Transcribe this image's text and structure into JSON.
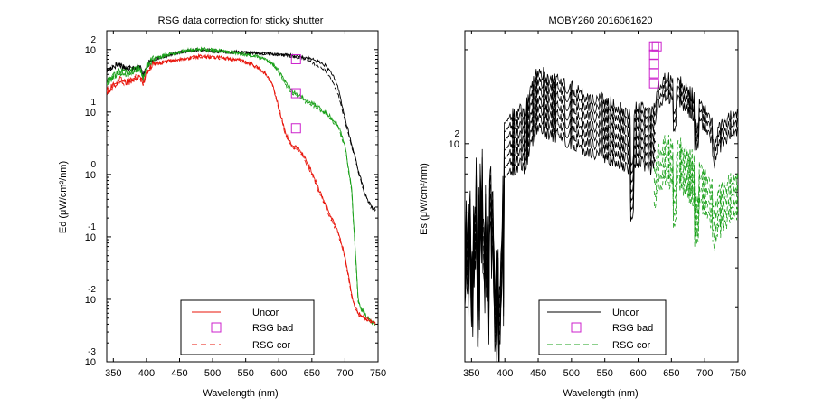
{
  "chart_data": [
    {
      "type": "line",
      "title": "RSG data correction for sticky shutter",
      "xlabel": "Wavelength (nm)",
      "ylabel": "Ed (μW/cm²/nm)",
      "yscale": "log",
      "xlim": [
        340,
        750
      ],
      "ylim": [
        0.001,
        200
      ],
      "x_ticks": [
        350,
        400,
        450,
        500,
        550,
        600,
        650,
        700,
        750
      ],
      "y_ticks": [
        {
          "base": "10",
          "exp": "-3",
          "value": 0.001
        },
        {
          "base": "10",
          "exp": "-2",
          "value": 0.01
        },
        {
          "base": "10",
          "exp": "-1",
          "value": 0.1
        },
        {
          "base": "10",
          "exp": "0",
          "value": 1
        },
        {
          "base": "10",
          "exp": "1",
          "value": 10
        },
        {
          "base": "10",
          "exp": "2",
          "value": 100
        }
      ],
      "legend": {
        "position": "bottom-center",
        "entries": [
          {
            "label": "Uncor",
            "style": "solid",
            "color": "#e8140a"
          },
          {
            "label": "RSG bad",
            "style": "square-marker",
            "color": "#cc22cc"
          },
          {
            "label": "RSG cor",
            "style": "dashed",
            "color": "#e8140a"
          }
        ]
      },
      "series": [
        {
          "color": "#000000",
          "style": "solid",
          "noise": 0.06,
          "x": [
            340,
            350,
            360,
            370,
            380,
            390,
            395,
            400,
            405,
            410,
            430,
            450,
            470,
            480,
            500,
            520,
            540,
            560,
            580,
            600,
            620,
            640,
            650,
            660,
            670,
            680,
            690,
            700,
            705,
            710,
            715,
            720,
            730,
            740,
            745
          ],
          "values": [
            45,
            55,
            58,
            50,
            52,
            55,
            38,
            55,
            62,
            68,
            80,
            90,
            98,
            100,
            95,
            92,
            90,
            88,
            86,
            84,
            80,
            74,
            70,
            64,
            56,
            42,
            24,
            8,
            5,
            3,
            2,
            1.2,
            0.5,
            0.3,
            0.28
          ]
        },
        {
          "color": "#000000",
          "style": "dashed",
          "noise": 0.05,
          "x": [
            340,
            350,
            360,
            370,
            380,
            390,
            395,
            400,
            405,
            410,
            430,
            450,
            470,
            480,
            500,
            520,
            540,
            560,
            580,
            600,
            620,
            640,
            650,
            660,
            670,
            680,
            690,
            700,
            705,
            710,
            715,
            720,
            730,
            740,
            745
          ],
          "values": [
            44,
            54,
            57,
            49,
            51,
            54,
            37,
            54,
            61,
            67,
            79,
            89,
            97,
            99,
            94,
            91,
            89,
            87,
            85,
            83,
            78,
            70,
            62,
            55,
            46,
            33,
            19,
            7,
            4.5,
            2.8,
            1.9,
            1.1,
            0.48,
            0.29,
            0.27
          ]
        },
        {
          "color": "#18a018",
          "style": "solid",
          "noise": 0.07,
          "x": [
            340,
            350,
            360,
            370,
            380,
            390,
            395,
            400,
            405,
            410,
            430,
            450,
            470,
            480,
            500,
            520,
            540,
            560,
            580,
            590,
            600,
            610,
            620,
            630,
            640,
            650,
            660,
            670,
            680,
            690,
            700,
            710,
            715,
            720,
            725,
            730,
            735,
            740,
            745
          ],
          "values": [
            30,
            38,
            45,
            42,
            46,
            52,
            35,
            55,
            63,
            70,
            82,
            92,
            100,
            102,
            98,
            94,
            88,
            80,
            70,
            60,
            45,
            30,
            22,
            19,
            16,
            14,
            12,
            10,
            8,
            6,
            3,
            0.6,
            0.08,
            0.01,
            0.007,
            0.006,
            0.005,
            0.0045,
            0.004
          ]
        },
        {
          "color": "#18a018",
          "style": "dashed",
          "noise": 0.06,
          "x": [
            340,
            350,
            360,
            370,
            380,
            390,
            395,
            400,
            405,
            410,
            430,
            450,
            470,
            480,
            500,
            520,
            540,
            560,
            580,
            590,
            600,
            610,
            620,
            630,
            640,
            650,
            660,
            670,
            680,
            690,
            700,
            710,
            715,
            720,
            725,
            730,
            735,
            740,
            745
          ],
          "values": [
            29,
            37,
            44,
            41,
            45,
            51,
            34,
            54,
            62,
            69,
            81,
            91,
            99,
            101,
            97,
            93,
            87,
            79,
            69,
            59,
            44,
            28,
            20,
            17,
            14.5,
            13,
            11,
            9.5,
            7.5,
            5.5,
            2.8,
            0.55,
            0.075,
            0.0095,
            0.0068,
            0.0058,
            0.0048,
            0.0043,
            0.0039
          ]
        },
        {
          "color": "#e8140a",
          "style": "solid",
          "noise": 0.07,
          "x": [
            340,
            350,
            360,
            370,
            380,
            390,
            395,
            400,
            405,
            410,
            430,
            450,
            470,
            480,
            500,
            520,
            540,
            560,
            580,
            590,
            600,
            610,
            620,
            630,
            640,
            650,
            660,
            670,
            680,
            690,
            700,
            705,
            710,
            715,
            720,
            725,
            730,
            740,
            745
          ],
          "values": [
            22,
            27,
            32,
            30,
            34,
            40,
            28,
            45,
            52,
            58,
            64,
            70,
            75,
            78,
            76,
            72,
            68,
            58,
            42,
            28,
            12,
            4.5,
            3,
            2.6,
            1.8,
            1.1,
            0.6,
            0.35,
            0.2,
            0.12,
            0.05,
            0.025,
            0.012,
            0.008,
            0.006,
            0.0055,
            0.005,
            0.0045,
            0.0042
          ]
        },
        {
          "color": "#e8140a",
          "style": "dashed",
          "noise": 0.06,
          "x": [
            340,
            350,
            360,
            370,
            380,
            390,
            395,
            400,
            405,
            410,
            430,
            450,
            470,
            480,
            500,
            520,
            540,
            560,
            580,
            590,
            600,
            610,
            620,
            630,
            640,
            650,
            660,
            670,
            680,
            690,
            700,
            705,
            710,
            715,
            720,
            725,
            730,
            740,
            745
          ],
          "values": [
            21.5,
            26.5,
            31.5,
            29.5,
            33.5,
            39.5,
            27.5,
            44.5,
            51.5,
            57.5,
            63.5,
            69.5,
            74.5,
            77.5,
            75.5,
            71.5,
            67.5,
            57.5,
            41.5,
            27.5,
            11.5,
            4.3,
            2.8,
            2.4,
            1.65,
            1.0,
            0.55,
            0.32,
            0.18,
            0.11,
            0.045,
            0.023,
            0.011,
            0.0075,
            0.0058,
            0.0053,
            0.0048,
            0.0044,
            0.0041
          ]
        }
      ],
      "markers": {
        "label": "RSG bad",
        "color": "#cc22cc",
        "points": [
          {
            "x": 626,
            "y": 70
          },
          {
            "x": 626,
            "y": 20
          },
          {
            "x": 626,
            "y": 5.5
          }
        ]
      }
    },
    {
      "type": "line",
      "title": "MOBY260  2016061620",
      "xlabel": "Wavelength (nm)",
      "ylabel": "Es (μW/cm²/nm)",
      "yscale": "log",
      "xlim": [
        340,
        750
      ],
      "ylim": [
        20,
        230
      ],
      "x_ticks": [
        350,
        400,
        450,
        500,
        550,
        600,
        650,
        700,
        750
      ],
      "y_ticks": [
        {
          "base": "10",
          "exp": "2",
          "value": 100
        }
      ],
      "legend": {
        "position": "bottom-center",
        "entries": [
          {
            "label": "Uncor",
            "style": "solid",
            "color": "#000000"
          },
          {
            "label": "RSG bad",
            "style": "square-marker",
            "color": "#cc22cc"
          },
          {
            "label": "RSG cor",
            "style": "dashed",
            "color": "#18a018"
          }
        ]
      },
      "base_spectrum": {
        "x": [
          340,
          345,
          350,
          355,
          360,
          365,
          370,
          375,
          380,
          385,
          390,
          395,
          398,
          400,
          410,
          420,
          430,
          440,
          450,
          460,
          470,
          480,
          490,
          500,
          510,
          520,
          530,
          540,
          550,
          560,
          570,
          580,
          590,
          600,
          610,
          620,
          625,
          630,
          640,
          650,
          660,
          670,
          680,
          690,
          700,
          710,
          715,
          720,
          730,
          740,
          750
        ],
        "values": [
          55,
          62,
          48,
          70,
          45,
          75,
          58,
          42,
          65,
          40,
          30,
          55,
          50,
          118,
          122,
          128,
          126,
          150,
          170,
          165,
          160,
          158,
          155,
          150,
          148,
          142,
          140,
          138,
          136,
          134,
          132,
          128,
          125,
          130,
          128,
          125,
          135,
          150,
          160,
          162,
          158,
          150,
          145,
          135,
          128,
          120,
          95,
          110,
          118,
          122,
          125
        ]
      },
      "scan_factors": [
        1.0,
        0.94,
        0.88,
        0.82,
        0.77,
        0.72,
        0.67
      ],
      "green_factors": [
        0.62,
        0.57,
        0.52,
        0.48
      ],
      "split_x": 624,
      "markers": {
        "label": "RSG bad",
        "color": "#cc22cc",
        "points": [
          {
            "x": 624,
            "y": 205
          },
          {
            "x": 624,
            "y": 193
          },
          {
            "x": 624,
            "y": 180
          },
          {
            "x": 624,
            "y": 168
          },
          {
            "x": 624,
            "y": 156
          },
          {
            "x": 628,
            "y": 205
          }
        ]
      }
    }
  ]
}
